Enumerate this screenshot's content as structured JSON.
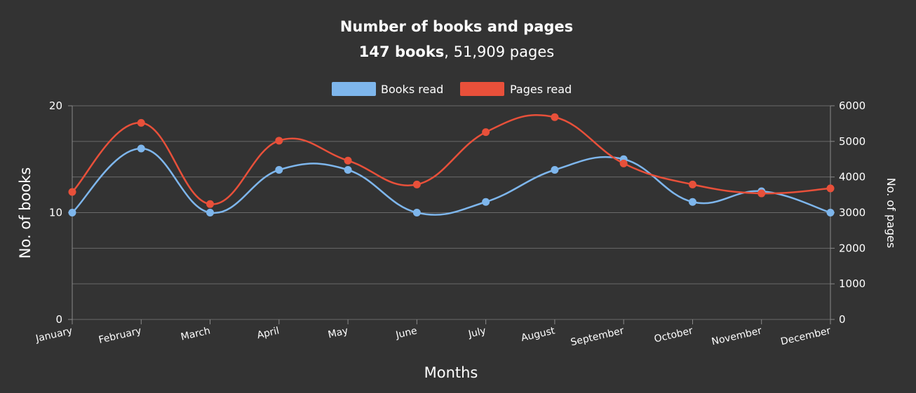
{
  "chart_data": {
    "type": "line",
    "title": "Number of books and pages",
    "subtitle": {
      "books_bold": "147 books",
      "pages": ", 51,909 pages"
    },
    "categories": [
      "January",
      "February",
      "March",
      "April",
      "May",
      "June",
      "July",
      "August",
      "September",
      "October",
      "November",
      "December"
    ],
    "series": [
      {
        "name": "Books read",
        "axis": "left",
        "color": "#7eb6ec",
        "values": [
          10,
          16,
          10,
          14,
          14,
          10,
          11,
          14,
          15,
          11,
          12,
          10
        ]
      },
      {
        "name": "Pages read",
        "axis": "right",
        "color": "#e8503a",
        "values": [
          3580,
          5520,
          3240,
          5020,
          4460,
          3790,
          5260,
          5680,
          4380,
          3790,
          3540,
          3680
        ]
      }
    ],
    "xlabel": "Months",
    "ylabel": "No. of books",
    "ylabel_right": "No. of pages",
    "ylim": [
      0,
      20
    ],
    "ylim_right": [
      0,
      6000
    ],
    "yticks": [
      "0",
      "10",
      "20"
    ],
    "yticks_right": [
      "0",
      "1000",
      "2000",
      "3000",
      "4000",
      "5000",
      "6000"
    ],
    "grid": true,
    "legend": "top-center",
    "smooth": true
  }
}
